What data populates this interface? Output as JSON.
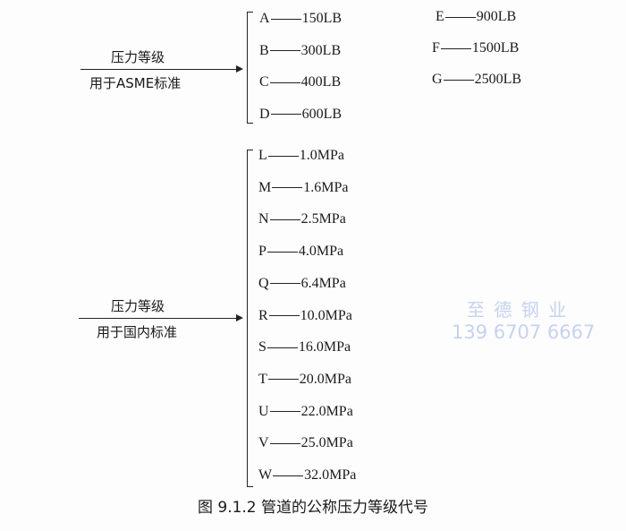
{
  "asme": {
    "label_top": "压力等级",
    "label_bottom": "用于ASME标准",
    "items": [
      {
        "code": "A",
        "value": "150LB"
      },
      {
        "code": "B",
        "value": "300LB"
      },
      {
        "code": "C",
        "value": "400LB"
      },
      {
        "code": "D",
        "value": "600LB"
      },
      {
        "code": "E",
        "value": "900LB"
      },
      {
        "code": "F",
        "value": "1500LB"
      },
      {
        "code": "G",
        "value": "2500LB"
      }
    ]
  },
  "domestic": {
    "label_top": "压力等级",
    "label_bottom": "用于国内标准",
    "items": [
      {
        "code": "L",
        "value": "1.0MPa"
      },
      {
        "code": "M",
        "value": "1.6MPa"
      },
      {
        "code": "N",
        "value": "2.5MPa"
      },
      {
        "code": "P",
        "value": "4.0MPa"
      },
      {
        "code": "Q",
        "value": "6.4MPa"
      },
      {
        "code": "R",
        "value": "10.0MPa"
      },
      {
        "code": "S",
        "value": "16.0MPa"
      },
      {
        "code": "T",
        "value": "20.0MPa"
      },
      {
        "code": "U",
        "value": "22.0MPa"
      },
      {
        "code": "V",
        "value": "25.0MPa"
      },
      {
        "code": "W",
        "value": "32.0MPa"
      }
    ]
  },
  "watermark": {
    "name": "至 德 钢 业",
    "phone": "139 6707 6667"
  },
  "caption": "图 9.1.2   管道的公称压力等级代号"
}
